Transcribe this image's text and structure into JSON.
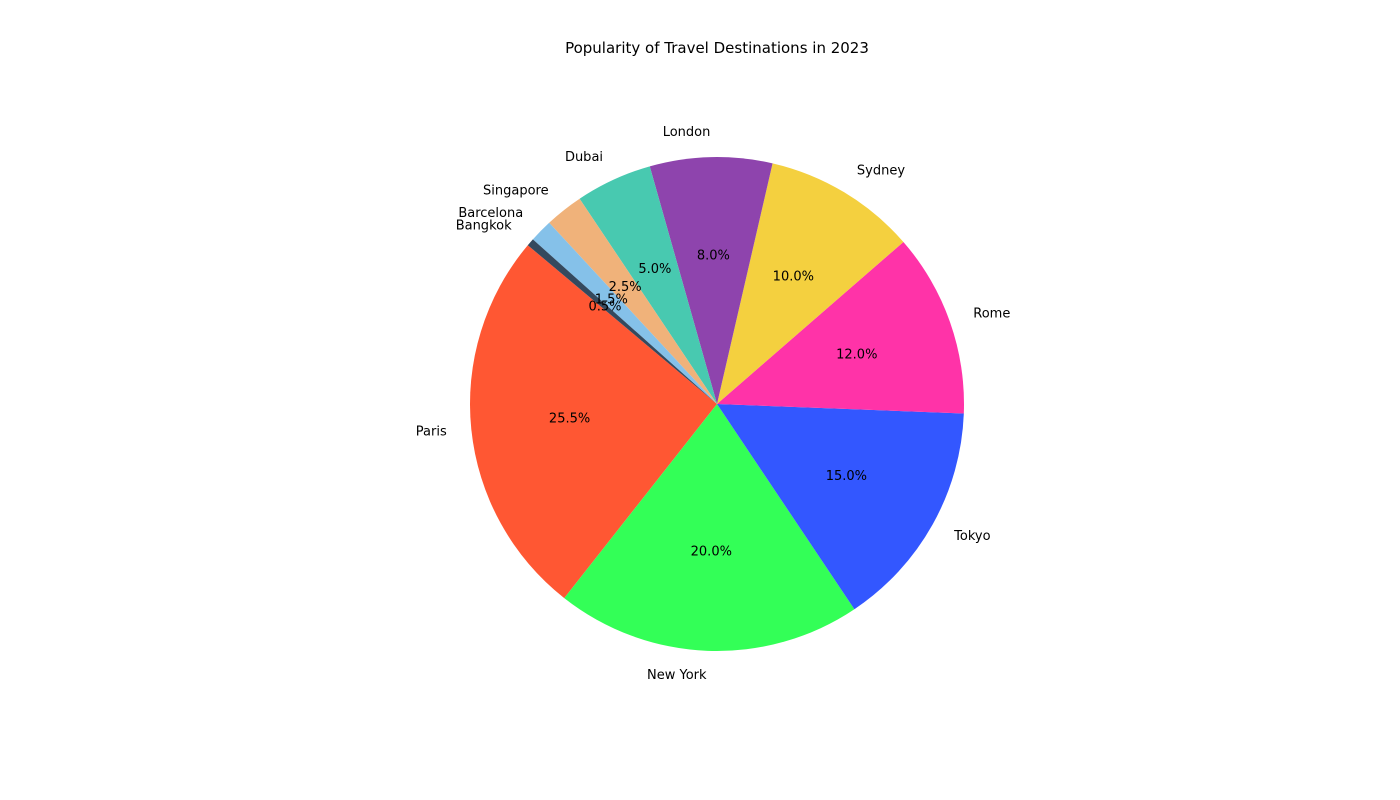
{
  "chart_data": {
    "type": "pie",
    "title": "Popularity of Travel Destinations in 2023",
    "categories": [
      "Paris",
      "New York",
      "Tokyo",
      "Rome",
      "Sydney",
      "London",
      "Dubai",
      "Singapore",
      "Barcelona",
      "Bangkok"
    ],
    "values": [
      25.5,
      20.0,
      15.0,
      12.0,
      10.0,
      8.0,
      5.0,
      2.5,
      1.5,
      0.5
    ],
    "value_labels": [
      "25.5%",
      "20.0%",
      "15.0%",
      "12.0%",
      "10.0%",
      "8.0%",
      "5.0%",
      "2.5%",
      "1.5%",
      "0.5%"
    ],
    "colors": [
      "#FF5733",
      "#33FF57",
      "#3357FF",
      "#FF33A8",
      "#F4D03F",
      "#8E44AD",
      "#48C9B0",
      "#F0B27A",
      "#85C1E9",
      "#34495E"
    ],
    "start_angle_deg": 140,
    "direction": "counterclockwise",
    "legend": "none"
  }
}
